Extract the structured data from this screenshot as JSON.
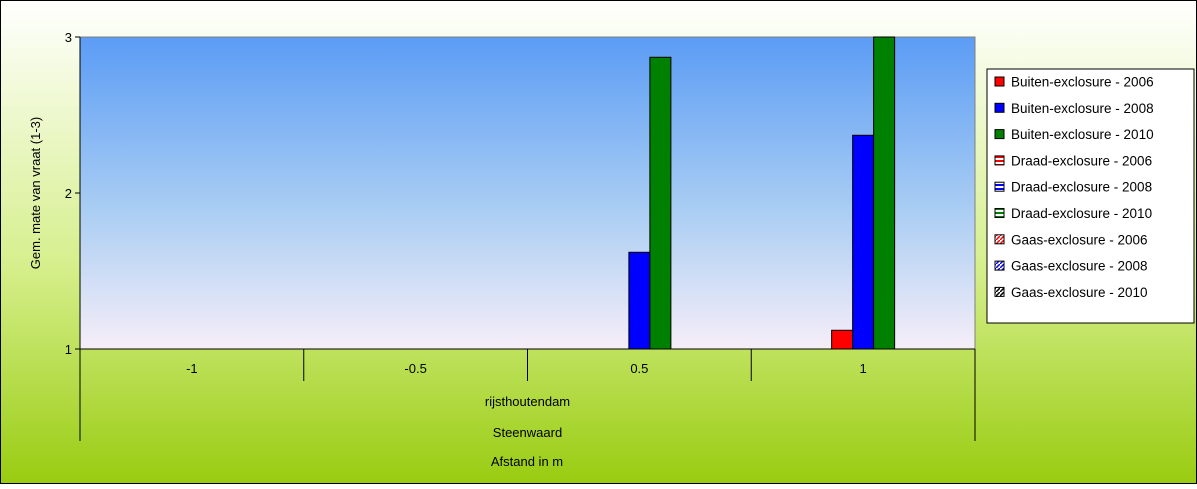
{
  "chart_data": {
    "type": "bar",
    "title": "",
    "ylabel": "Gem. mate van vraat (1-3)",
    "ylim": [
      1,
      3
    ],
    "yticks": [
      1,
      2,
      3
    ],
    "categories": [
      "-1",
      "-0.5",
      "0.5",
      "1"
    ],
    "category_groups": [
      {
        "label": "rijsthoutendam",
        "span": [
          0,
          3
        ]
      },
      {
        "label": "Steenwaard",
        "span": [
          0,
          3
        ]
      }
    ],
    "xlabel": "Afstand in m",
    "legend_position": "right",
    "grid": false,
    "series": [
      {
        "name": "Buiten-exclosure - 2006",
        "color": "#ff0000",
        "pattern": "solid",
        "values": [
          null,
          null,
          null,
          1.12
        ]
      },
      {
        "name": "Buiten-exclosure - 2008",
        "color": "#0000ff",
        "pattern": "solid",
        "values": [
          null,
          null,
          1.62,
          2.37
        ]
      },
      {
        "name": "Buiten-exclosure - 2010",
        "color": "#008000",
        "pattern": "solid",
        "values": [
          null,
          null,
          2.87,
          3.0
        ]
      },
      {
        "name": "Draad-exclosure - 2006",
        "color": "#ff0000",
        "pattern": "hstripe",
        "values": [
          null,
          null,
          null,
          null
        ]
      },
      {
        "name": "Draad-exclosure - 2008",
        "color": "#0000ff",
        "pattern": "hstripe",
        "values": [
          null,
          null,
          null,
          null
        ]
      },
      {
        "name": "Draad-exclosure - 2010",
        "color": "#008000",
        "pattern": "hstripe",
        "values": [
          null,
          null,
          null,
          null
        ]
      },
      {
        "name": "Gaas-exclosure - 2006",
        "color": "#ff0000",
        "pattern": "diagonal",
        "values": [
          null,
          null,
          null,
          null
        ]
      },
      {
        "name": "Gaas-exclosure - 2008",
        "color": "#0000ff",
        "pattern": "diagonal",
        "values": [
          null,
          null,
          null,
          null
        ]
      },
      {
        "name": "Gaas-exclosure - 2010",
        "color": "#ffffff",
        "pattern": "diagonal",
        "values": [
          null,
          null,
          null,
          null
        ]
      }
    ]
  }
}
